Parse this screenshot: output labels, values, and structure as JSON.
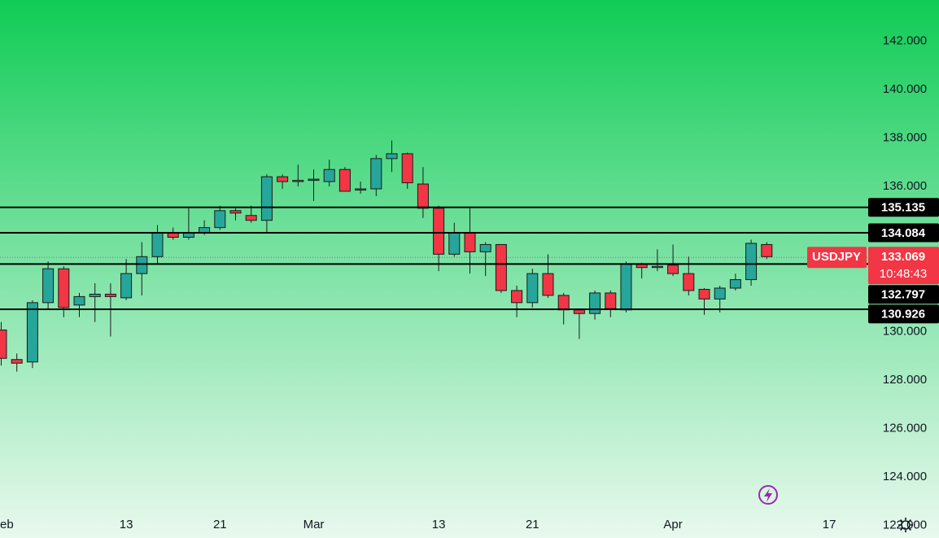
{
  "chart_data": {
    "type": "candlestick",
    "symbol": "USDJPY",
    "last_price": 133.069,
    "countdown": "10:48:43",
    "up_color": "#26a69a",
    "down_color": "#f23645",
    "categories": [
      null,
      null,
      null,
      null,
      null,
      null,
      null,
      null,
      null,
      null,
      null,
      null,
      null,
      null,
      null,
      null,
      null,
      null,
      null,
      null,
      null,
      null,
      null,
      null,
      null,
      null,
      null,
      null,
      null,
      null,
      null,
      null,
      null,
      null,
      null,
      null,
      null,
      null,
      null,
      null,
      null,
      null,
      null,
      null,
      null,
      null,
      null,
      null,
      null,
      null
    ],
    "open": [
      130.07,
      128.85,
      128.75,
      131.2,
      132.6,
      131.1,
      131.45,
      131.55,
      131.4,
      132.4,
      133.1,
      134.1,
      133.9,
      134.1,
      134.3,
      135.0,
      134.8,
      134.6,
      136.4,
      136.2,
      136.25,
      136.2,
      136.7,
      135.85,
      135.9,
      137.15,
      137.35,
      136.1,
      135.1,
      133.2,
      134.1,
      133.3,
      133.6,
      131.7,
      131.2,
      132.4,
      131.5,
      130.9,
      130.75,
      131.6,
      130.9,
      132.8,
      132.65,
      132.75,
      132.4,
      131.75,
      131.35,
      131.8,
      132.15,
      133.6
    ],
    "high": [
      130.4,
      129.1,
      131.3,
      132.9,
      132.7,
      131.6,
      132.0,
      132.0,
      133.0,
      133.7,
      134.4,
      134.3,
      135.1,
      134.6,
      135.2,
      135.1,
      135.2,
      136.5,
      136.5,
      136.9,
      136.7,
      137.1,
      136.8,
      136.2,
      137.3,
      137.9,
      137.4,
      136.8,
      135.2,
      134.5,
      135.1,
      133.7,
      133.6,
      131.9,
      132.6,
      133.2,
      131.6,
      130.9,
      131.7,
      131.7,
      132.9,
      132.85,
      133.4,
      133.6,
      133.1,
      131.8,
      131.9,
      132.4,
      133.8,
      133.7
    ],
    "low": [
      128.6,
      128.35,
      128.5,
      130.9,
      130.6,
      130.6,
      130.4,
      129.8,
      131.3,
      131.5,
      132.8,
      133.8,
      133.8,
      134.0,
      134.2,
      134.6,
      134.5,
      134.1,
      135.9,
      136.0,
      135.4,
      136.0,
      135.8,
      135.7,
      135.6,
      136.6,
      135.9,
      134.7,
      132.5,
      133.1,
      132.4,
      132.3,
      131.6,
      130.6,
      131.0,
      131.4,
      130.3,
      129.7,
      130.5,
      130.6,
      130.8,
      132.2,
      132.5,
      132.3,
      131.5,
      130.7,
      130.8,
      131.7,
      131.9,
      133.0
    ],
    "close": [
      128.9,
      128.7,
      131.2,
      132.6,
      131.0,
      131.45,
      131.55,
      131.45,
      132.4,
      133.1,
      134.1,
      133.9,
      134.1,
      134.3,
      135.0,
      134.9,
      134.6,
      136.4,
      136.2,
      136.25,
      136.3,
      136.7,
      135.8,
      135.9,
      137.15,
      137.35,
      136.15,
      135.1,
      133.2,
      134.1,
      133.3,
      133.6,
      131.7,
      131.2,
      132.4,
      131.5,
      130.9,
      130.75,
      131.6,
      130.95,
      132.8,
      132.65,
      132.7,
      132.4,
      131.7,
      131.35,
      131.8,
      132.15,
      133.65,
      133.1
    ],
    "levels": [
      135.135,
      134.084,
      132.797,
      130.926
    ],
    "ylim": [
      121.479,
      143.7
    ],
    "yticks": [
      {
        "value": 142,
        "label": "142.000"
      },
      {
        "value": 140,
        "label": "140.000"
      },
      {
        "value": 138,
        "label": "138.000"
      },
      {
        "value": 136,
        "label": "136.000"
      },
      {
        "value": 130,
        "label": "130.000"
      },
      {
        "value": 128,
        "label": "128.000"
      },
      {
        "value": 126,
        "label": "126.000"
      },
      {
        "value": 124,
        "label": "124.000"
      },
      {
        "value": 122,
        "label": "122.000"
      }
    ],
    "xticks": [
      {
        "value": 0,
        "label": "eb"
      },
      {
        "value": 8,
        "label": "13"
      },
      {
        "value": 14,
        "label": "21"
      },
      {
        "value": 20,
        "label": "Mar"
      },
      {
        "value": 28,
        "label": "13"
      },
      {
        "value": 34,
        "label": "21"
      },
      {
        "value": 43,
        "label": "Apr"
      },
      {
        "value": 53,
        "label": "17"
      }
    ]
  }
}
